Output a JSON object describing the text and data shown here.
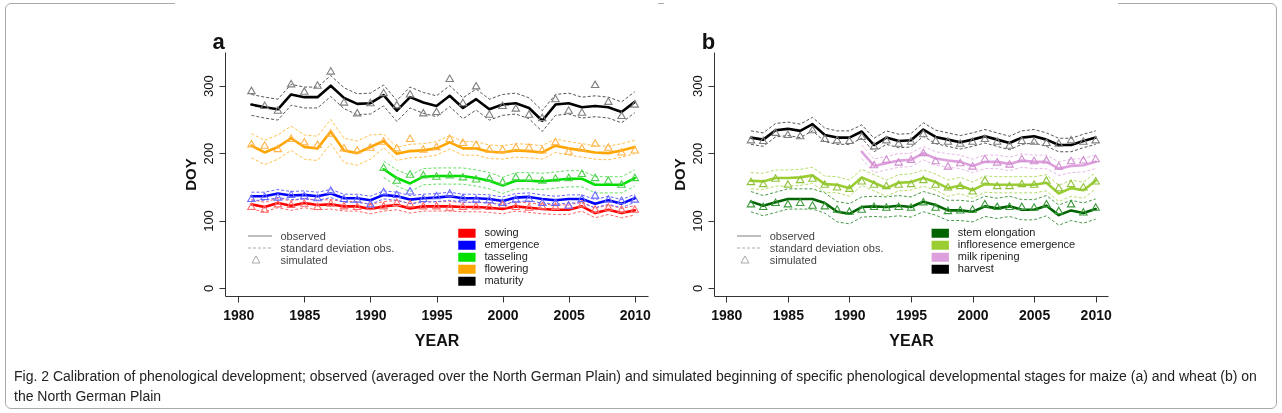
{
  "chart_data": [
    {
      "type": "line",
      "title": "a",
      "xlabel": "YEAR",
      "ylabel": "DOY",
      "x": [
        1981,
        1982,
        1983,
        1984,
        1985,
        1986,
        1987,
        1988,
        1989,
        1990,
        1991,
        1992,
        1993,
        1994,
        1995,
        1996,
        1997,
        1998,
        1999,
        2000,
        2001,
        2002,
        2003,
        2004,
        2005,
        2006,
        2007,
        2008,
        2009,
        2010
      ],
      "xlim": [
        1979,
        2011
      ],
      "xticks": [
        1980,
        1985,
        1990,
        1995,
        2000,
        2005,
        2010
      ],
      "ylim": [
        -12,
        350
      ],
      "yticks": [
        0,
        100,
        200,
        300
      ],
      "grid": false,
      "legend": "bottom",
      "annotations": [
        "observed",
        "standard deviation  obs.",
        "simulated",
        "Fig. 2  Calibration of phenological development; observed (averaged over the North German Plain) and simulated beginning of specific phenological developmental stages for maize (a) and wheat (b) on the North German Plain"
      ],
      "series": [
        {
          "line_style": "dashed",
          "color": "#ff6666",
          "values": [
            131,
            127,
            133,
            129,
            133,
            130,
            131,
            128,
            128,
            124,
            128,
            130,
            125,
            128,
            128,
            128,
            127,
            127,
            126,
            124,
            128,
            126,
            124,
            123,
            123,
            128,
            118,
            123,
            118,
            122
          ]
        },
        {
          "line_style": "dashed",
          "color": "#ff6666",
          "values": [
            117,
            113,
            119,
            115,
            119,
            116,
            117,
            114,
            114,
            110,
            114,
            116,
            111,
            114,
            114,
            114,
            113,
            113,
            112,
            110,
            114,
            112,
            110,
            109,
            109,
            114,
            104,
            109,
            104,
            108
          ]
        },
        {
          "line_style": "dashed",
          "color": "#6666ff",
          "values": [
            142,
            142,
            146,
            143,
            144,
            142,
            146,
            139,
            139,
            136,
            144,
            142,
            137,
            139,
            140,
            142,
            139,
            139,
            138,
            135,
            140,
            141,
            138,
            136,
            138,
            138,
            131,
            136,
            131,
            139
          ]
        },
        {
          "line_style": "dashed",
          "color": "#6666ff",
          "values": [
            130,
            130,
            134,
            131,
            132,
            130,
            134,
            127,
            127,
            124,
            132,
            130,
            125,
            127,
            128,
            130,
            127,
            127,
            126,
            123,
            128,
            129,
            126,
            124,
            126,
            126,
            119,
            124,
            119,
            127
          ]
        },
        {
          "line_style": "dashed",
          "color": "#66e066",
          "x": [
            1991,
            1992,
            1993,
            1994,
            1995,
            1996,
            1997,
            1998,
            1999,
            2000,
            2001,
            2002,
            2003,
            2004,
            2005,
            2006,
            2007,
            2008,
            2009,
            2010
          ],
          "values": [
            188,
            175,
            167,
            177,
            178,
            178,
            178,
            175,
            171,
            164,
            171,
            171,
            170,
            172,
            174,
            174,
            165,
            165,
            165,
            175
          ]
        },
        {
          "line_style": "dashed",
          "color": "#66e066",
          "x": [
            1991,
            1992,
            1993,
            1994,
            1995,
            1996,
            1997,
            1998,
            1999,
            2000,
            2001,
            2002,
            2003,
            2004,
            2005,
            2006,
            2007,
            2008,
            2009,
            2010
          ],
          "values": [
            164,
            151,
            143,
            153,
            154,
            154,
            154,
            151,
            147,
            140,
            147,
            147,
            146,
            148,
            150,
            150,
            141,
            141,
            141,
            151
          ]
        },
        {
          "line_style": "dashed",
          "color": "#ffc04d",
          "values": [
            229,
            219,
            227,
            240,
            227,
            225,
            250,
            222,
            218,
            227,
            228,
            209,
            213,
            214,
            217,
            226,
            217,
            217,
            212,
            211,
            214,
            213,
            211,
            221,
            217,
            214,
            211,
            210,
            214,
            219
          ]
        },
        {
          "line_style": "dashed",
          "color": "#ffc04d",
          "values": [
            193,
            183,
            191,
            204,
            191,
            189,
            214,
            186,
            182,
            191,
            208,
            189,
            193,
            194,
            197,
            206,
            197,
            197,
            192,
            191,
            194,
            193,
            191,
            201,
            197,
            194,
            191,
            190,
            194,
            199
          ]
        },
        {
          "line_style": "dashed",
          "color": "#555555",
          "values": [
            287,
            283,
            280,
            302,
            298,
            298,
            315,
            297,
            288,
            289,
            301,
            278,
            298,
            290,
            285,
            300,
            282,
            295,
            280,
            287,
            289,
            282,
            263,
            287,
            289,
            283,
            285,
            283,
            276,
            291
          ]
        },
        {
          "line_style": "dashed",
          "color": "#555555",
          "values": [
            256,
            252,
            249,
            271,
            267,
            267,
            284,
            266,
            257,
            258,
            270,
            247,
            267,
            259,
            254,
            269,
            251,
            264,
            249,
            256,
            258,
            251,
            232,
            256,
            258,
            252,
            254,
            252,
            245,
            260
          ]
        },
        {
          "name": "sowing",
          "color": "#ff0000",
          "line_style": "solid",
          "values": [
            124,
            120,
            126,
            122,
            126,
            123,
            124,
            121,
            121,
            117,
            121,
            123,
            118,
            121,
            121,
            121,
            120,
            120,
            119,
            117,
            121,
            119,
            117,
            116,
            116,
            121,
            111,
            116,
            111,
            115
          ]
        },
        {
          "name": "emergence",
          "color": "#0000ff",
          "line_style": "solid",
          "values": [
            136,
            136,
            140,
            137,
            138,
            136,
            140,
            133,
            133,
            130,
            138,
            136,
            131,
            133,
            134,
            136,
            133,
            133,
            132,
            129,
            134,
            135,
            132,
            130,
            132,
            132,
            125,
            130,
            125,
            133
          ]
        },
        {
          "name": "tasseling",
          "color": "#00e000",
          "line_style": "solid",
          "x": [
            1991,
            1992,
            1993,
            1994,
            1995,
            1996,
            1997,
            1998,
            1999,
            2000,
            2001,
            2002,
            2003,
            2004,
            2005,
            2006,
            2007,
            2008,
            2009,
            2010
          ],
          "values": [
            176,
            163,
            155,
            165,
            166,
            166,
            166,
            163,
            159,
            152,
            159,
            159,
            158,
            160,
            162,
            162,
            153,
            153,
            153,
            163
          ]
        },
        {
          "name": "flowering",
          "color": "#ffa500",
          "line_style": "solid",
          "values": [
            211,
            201,
            209,
            222,
            209,
            207,
            232,
            204,
            200,
            209,
            218,
            199,
            203,
            204,
            207,
            216,
            207,
            207,
            202,
            201,
            204,
            203,
            201,
            211,
            207,
            204,
            201,
            200,
            204,
            209
          ]
        },
        {
          "name": "maturity",
          "color": "#000000",
          "line_style": "solid",
          "values": [
            272,
            268,
            265,
            287,
            283,
            283,
            300,
            282,
            273,
            274,
            286,
            263,
            283,
            275,
            270,
            285,
            267,
            280,
            265,
            272,
            274,
            267,
            248,
            272,
            274,
            268,
            270,
            268,
            261,
            276
          ]
        },
        {
          "type": "scatter",
          "marker": "triangle",
          "color": "#ff6b6b",
          "values": [
            121,
            117,
            125,
            124,
            126,
            121,
            126,
            122,
            121,
            121,
            122,
            127,
            125,
            122,
            122,
            120,
            121,
            122,
            121,
            124,
            121,
            120,
            122,
            121,
            123,
            125,
            117,
            120,
            117,
            117
          ]
        },
        {
          "type": "scatter",
          "marker": "triangle",
          "color": "#6a6aff",
          "values": [
            133,
            136,
            135,
            139,
            137,
            134,
            145,
            133,
            132,
            125,
            143,
            139,
            144,
            133,
            137,
            141,
            134,
            132,
            131,
            127,
            132,
            133,
            127,
            127,
            123,
            133,
            138,
            132,
            130,
            132
          ]
        },
        {
          "type": "scatter",
          "marker": "triangle",
          "color": "#4fcf4f",
          "x": [
            1991,
            1992,
            1993,
            1994,
            1995,
            1996,
            1997,
            1998,
            1999,
            2000,
            2001,
            2002,
            2003,
            2004,
            2005,
            2006,
            2007,
            2008,
            2009,
            2010
          ],
          "values": [
            179,
            160,
            169,
            168,
            166,
            168,
            165,
            162,
            163,
            158,
            165,
            164,
            160,
            163,
            164,
            170,
            164,
            160,
            154,
            164
          ]
        },
        {
          "type": "scatter",
          "marker": "triangle",
          "color": "#ffb347",
          "values": [
            214,
            212,
            207,
            222,
            217,
            213,
            230,
            208,
            205,
            209,
            218,
            208,
            222,
            206,
            210,
            222,
            216,
            213,
            206,
            206,
            209,
            209,
            205,
            217,
            203,
            208,
            215,
            209,
            202,
            205
          ]
        },
        {
          "type": "scatter",
          "marker": "triangle",
          "color": "#7f7f7f",
          "values": [
            293,
            271,
            264,
            303,
            292,
            301,
            322,
            276,
            260,
            275,
            290,
            272,
            288,
            260,
            262,
            311,
            275,
            300,
            258,
            271,
            267,
            258,
            253,
            281,
            264,
            261,
            302,
            277,
            256,
            273
          ]
        }
      ]
    },
    {
      "type": "line",
      "title": "b",
      "xlabel": "YEAR",
      "ylabel": "DOY",
      "x": [
        1982,
        1983,
        1984,
        1985,
        1986,
        1987,
        1988,
        1989,
        1990,
        1991,
        1992,
        1993,
        1994,
        1995,
        1996,
        1997,
        1998,
        1999,
        2000,
        2001,
        2002,
        2003,
        2004,
        2005,
        2006,
        2007,
        2008,
        2009,
        2010
      ],
      "xlim": [
        1979,
        2011
      ],
      "xticks": [
        1980,
        1985,
        1990,
        1995,
        2000,
        2005,
        2010
      ],
      "ylim": [
        -12,
        350
      ],
      "yticks": [
        0,
        100,
        200,
        300
      ],
      "grid": false,
      "legend": "bottom",
      "annotations": [
        "observed",
        "standard deviation  obs.",
        "simulated"
      ],
      "series": [
        {
          "line_style": "dashed",
          "color": "#4a9a4a",
          "values": [
            143,
            137,
            142,
            147,
            147,
            147,
            141,
            128,
            125,
            135,
            136,
            135,
            137,
            135,
            143,
            138,
            130,
            130,
            128,
            136,
            133,
            136,
            131,
            131,
            137,
            123,
            130,
            126,
            132
          ]
        },
        {
          "line_style": "dashed",
          "color": "#4a9a4a",
          "values": [
            113,
            107,
            112,
            117,
            117,
            117,
            111,
            98,
            95,
            105,
            106,
            105,
            107,
            105,
            113,
            108,
            100,
            100,
            98,
            106,
            103,
            106,
            101,
            101,
            107,
            93,
            100,
            96,
            102
          ]
        },
        {
          "line_style": "dashed",
          "color": "#b5dc6a",
          "values": [
            171,
            170,
            175,
            175,
            176,
            179,
            166,
            165,
            160,
            176,
            168,
            160,
            168,
            169,
            175,
            169,
            160,
            164,
            157,
            166,
            165,
            165,
            165,
            165,
            168,
            152,
            160,
            157,
            171
          ]
        },
        {
          "line_style": "dashed",
          "color": "#b5dc6a",
          "values": [
            147,
            146,
            151,
            151,
            152,
            155,
            142,
            141,
            136,
            152,
            144,
            136,
            144,
            145,
            151,
            145,
            136,
            140,
            133,
            142,
            141,
            141,
            141,
            141,
            144,
            128,
            136,
            133,
            147
          ]
        },
        {
          "line_style": "dashed",
          "color": "#e6b8e6",
          "x": [
            1991,
            1992,
            1993,
            1994,
            1995,
            1996,
            1997,
            1998,
            1999,
            2000,
            2001,
            2002,
            2003,
            2004,
            2005,
            2006,
            2007,
            2008,
            2009,
            2010
          ],
          "values": [
            212,
            191,
            195,
            199,
            200,
            210,
            202,
            199,
            197,
            191,
            197,
            197,
            194,
            199,
            197,
            197,
            187,
            191,
            192,
            197
          ]
        },
        {
          "line_style": "dashed",
          "color": "#e6b8e6",
          "x": [
            1991,
            1992,
            1993,
            1994,
            1995,
            1996,
            1997,
            1998,
            1999,
            2000,
            2001,
            2002,
            2003,
            2004,
            2005,
            2006,
            2007,
            2008,
            2009,
            2010
          ],
          "values": [
            192,
            171,
            175,
            179,
            180,
            190,
            182,
            179,
            177,
            171,
            177,
            177,
            174,
            179,
            177,
            177,
            167,
            171,
            172,
            177
          ]
        },
        {
          "line_style": "dashed",
          "color": "#555555",
          "values": [
            233,
            230,
            244,
            246,
            243,
            253,
            237,
            233,
            233,
            242,
            222,
            233,
            228,
            229,
            245,
            234,
            230,
            226,
            230,
            235,
            230,
            225,
            233,
            235,
            230,
            222,
            222,
            228,
            233
          ]
        },
        {
          "line_style": "dashed",
          "color": "#555555",
          "values": [
            213,
            210,
            224,
            226,
            223,
            233,
            217,
            213,
            213,
            222,
            202,
            213,
            208,
            209,
            225,
            214,
            210,
            206,
            210,
            215,
            210,
            205,
            213,
            215,
            210,
            202,
            202,
            208,
            213
          ]
        },
        {
          "name": "stem elongation",
          "color": "#006400",
          "line_style": "solid",
          "values": [
            128,
            122,
            127,
            132,
            132,
            132,
            126,
            113,
            110,
            120,
            121,
            120,
            122,
            120,
            128,
            123,
            115,
            115,
            113,
            121,
            118,
            121,
            116,
            116,
            122,
            108,
            115,
            111,
            117
          ]
        },
        {
          "name": "infloresence emergence",
          "color": "#9acd32",
          "line_style": "solid",
          "values": [
            159,
            158,
            163,
            163,
            164,
            167,
            154,
            153,
            148,
            164,
            156,
            148,
            156,
            157,
            163,
            157,
            148,
            152,
            145,
            154,
            153,
            153,
            153,
            153,
            156,
            140,
            148,
            145,
            159
          ]
        },
        {
          "name": "milk ripening",
          "color": "#dda0dd",
          "line_style": "solid",
          "x": [
            1991,
            1992,
            1993,
            1994,
            1995,
            1996,
            1997,
            1998,
            1999,
            2000,
            2001,
            2002,
            2003,
            2004,
            2005,
            2006,
            2007,
            2008,
            2009,
            2010
          ],
          "values": [
            202,
            181,
            185,
            189,
            190,
            200,
            192,
            189,
            187,
            181,
            187,
            187,
            184,
            189,
            187,
            187,
            177,
            181,
            182,
            187
          ]
        },
        {
          "name": "harvest",
          "color": "#000000",
          "line_style": "solid",
          "values": [
            223,
            220,
            234,
            236,
            233,
            243,
            227,
            223,
            223,
            232,
            212,
            223,
            218,
            219,
            235,
            224,
            220,
            216,
            220,
            225,
            220,
            215,
            223,
            225,
            220,
            212,
            212,
            218,
            223
          ]
        },
        {
          "type": "scatter",
          "marker": "triangle",
          "color": "#3c9a3c",
          "values": [
            125,
            121,
            127,
            125,
            127,
            123,
            122,
            117,
            114,
            117,
            121,
            120,
            121,
            120,
            128,
            120,
            115,
            116,
            117,
            125,
            121,
            121,
            121,
            120,
            125,
            115,
            125,
            113,
            120
          ]
        },
        {
          "type": "scatter",
          "marker": "triangle",
          "color": "#8fc23a",
          "values": [
            158,
            155,
            163,
            154,
            161,
            163,
            154,
            150,
            148,
            159,
            154,
            152,
            154,
            155,
            161,
            154,
            150,
            152,
            144,
            160,
            152,
            152,
            155,
            154,
            160,
            149,
            155,
            150,
            159
          ]
        },
        {
          "type": "scatter",
          "marker": "triangle",
          "color": "#d08fd0",
          "x": [
            1992,
            1993,
            1994,
            1995,
            1996,
            1997,
            1998,
            1999,
            2000,
            2001,
            2002,
            2003,
            2004,
            2005,
            2006,
            2007,
            2008,
            2009,
            2010
          ],
          "values": [
            183,
            191,
            187,
            191,
            201,
            189,
            181,
            186,
            181,
            192,
            187,
            184,
            192,
            189,
            190,
            181,
            189,
            190,
            192
          ]
        },
        {
          "type": "scatter",
          "marker": "triangle",
          "color": "#7f7f7f",
          "values": [
            220,
            219,
            231,
            228,
            226,
            235,
            222,
            220,
            219,
            225,
            211,
            220,
            215,
            218,
            229,
            219,
            218,
            215,
            218,
            222,
            218,
            212,
            219,
            218,
            216,
            215,
            220,
            218,
            220
          ]
        }
      ]
    }
  ]
}
